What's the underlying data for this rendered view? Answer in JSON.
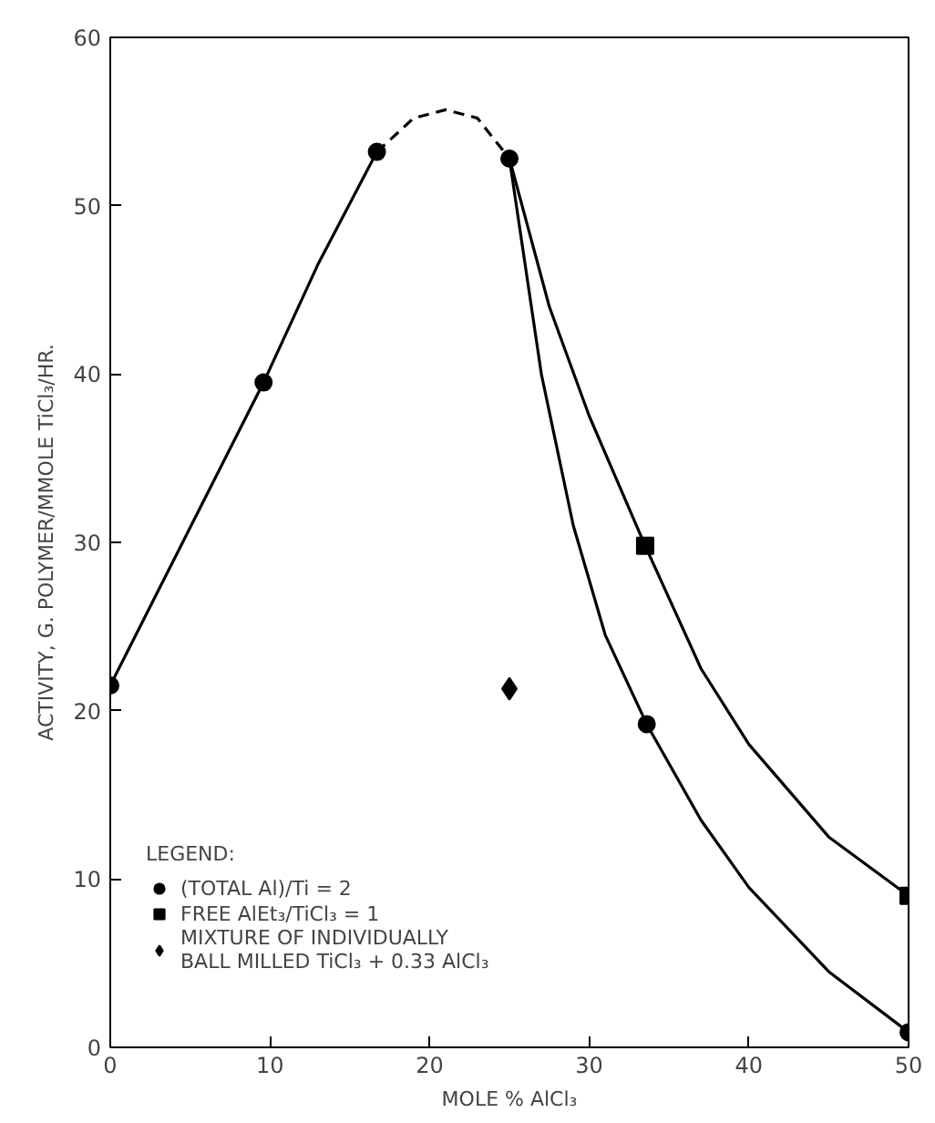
{
  "chart_data": {
    "type": "scatter",
    "xlabel": "MOLE % AlCl₃",
    "ylabel": "ACTIVITY, G. POLYMER/MMOLE TiCl₃/HR.",
    "legend_title": "LEGEND:",
    "legend": "bottom left",
    "grid": false,
    "xlim": [
      0,
      50
    ],
    "ylim": [
      0,
      60
    ],
    "xticks": [
      0,
      10,
      20,
      30,
      40,
      50
    ],
    "yticks": [
      0,
      10,
      20,
      30,
      40,
      50,
      60
    ],
    "series": [
      {
        "type": "line",
        "color": "#000000",
        "marker": "none",
        "line_style": "solid",
        "x": [
          0,
          4,
          9.6,
          13,
          16.7
        ],
        "values": [
          21.5,
          29,
          39.5,
          46.5,
          53.2
        ]
      },
      {
        "type": "line",
        "color": "#000000",
        "marker": "none",
        "line_style": "dashed",
        "x": [
          16.7,
          19,
          21,
          23,
          25
        ],
        "values": [
          53.2,
          55.2,
          55.7,
          55.2,
          52.8
        ]
      },
      {
        "type": "line",
        "color": "#000000",
        "marker": "none",
        "line_style": "solid",
        "x": [
          25,
          27,
          29,
          31,
          33.6,
          37,
          40,
          45,
          50
        ],
        "values": [
          52.8,
          40,
          31,
          24.5,
          19.2,
          13.5,
          9.5,
          4.5,
          0.9
        ]
      },
      {
        "type": "line",
        "color": "#000000",
        "marker": "none",
        "line_style": "solid",
        "x": [
          25,
          27.5,
          30,
          33.5,
          37,
          40,
          45,
          50
        ],
        "values": [
          52.8,
          44,
          37.5,
          29.8,
          22.5,
          18,
          12.5,
          9
        ]
      },
      {
        "type": "scatter",
        "name": "(TOTAL Al)/Ti = 2",
        "color": "#000000",
        "marker": "circle",
        "x": [
          0,
          9.6,
          16.7,
          25,
          33.6,
          50
        ],
        "values": [
          21.5,
          39.5,
          53.2,
          52.8,
          19.2,
          0.9
        ]
      },
      {
        "type": "scatter",
        "name": "FREE AlEt₃/TiCl₃ = 1",
        "color": "#000000",
        "marker": "square",
        "x": [
          33.5,
          50
        ],
        "values": [
          29.8,
          9
        ]
      },
      {
        "type": "scatter",
        "name": "MIXTURE OF INDIVIDUALLY\nBALL MILLED TiCl₃ + 0.33 AlCl₃",
        "color": "#000000",
        "marker": "diamond",
        "x": [
          25
        ],
        "values": [
          21.3
        ]
      }
    ]
  }
}
